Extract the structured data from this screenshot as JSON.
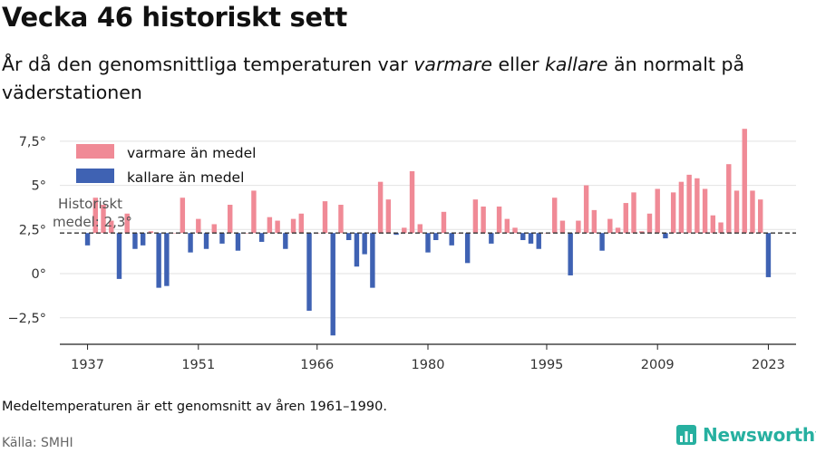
{
  "title": "Vecka 46 historiskt sett",
  "subtitle": {
    "part1": "År då den genomsnittliga temperaturen var ",
    "warm_word": "varmare",
    "part2": " eller ",
    "cold_word": "kallare",
    "part3": " än normalt på väderstationen"
  },
  "note": "Medeltemperaturen är ett genomsnitt av åren 1961–1990.",
  "source": "Källa: SMHI",
  "logo_text": "Newsworthy",
  "colors": {
    "warm": "#f08a96",
    "cold": "#3f62b3",
    "grid": "#e2e2e2",
    "baseline": "#333333",
    "accent": "#27b0a0"
  },
  "chart_data": {
    "type": "bar",
    "baseline": 2.3,
    "baseline_annotation": {
      "line1": "Historiskt",
      "line2": "medel: 2,3°"
    },
    "legend": [
      {
        "label": "varmare än medel",
        "color": "#f08a96"
      },
      {
        "label": "kallare än medel",
        "color": "#3f62b3"
      }
    ],
    "y_ticks": [
      {
        "value": -2.5,
        "label": "−2,5°"
      },
      {
        "value": 0,
        "label": "0°"
      },
      {
        "value": 2.5,
        "label": "2,5°"
      },
      {
        "value": 5,
        "label": "5°"
      },
      {
        "value": 7.5,
        "label": "7,5°"
      }
    ],
    "ylim": [
      -4.0,
      7.8
    ],
    "x_ticks": [
      "1937",
      "1951",
      "1966",
      "1980",
      "1995",
      "2009",
      "2023"
    ],
    "xlim": [
      1933.5,
      2026.5
    ],
    "years": [
      1937,
      1938,
      1939,
      1940,
      1941,
      1942,
      1943,
      1944,
      1945,
      1946,
      1947,
      1948,
      1949,
      1950,
      1951,
      1952,
      1953,
      1954,
      1955,
      1956,
      1957,
      1958,
      1959,
      1960,
      1961,
      1962,
      1963,
      1964,
      1965,
      1966,
      1967,
      1968,
      1969,
      1970,
      1971,
      1972,
      1973,
      1974,
      1975,
      1976,
      1977,
      1978,
      1979,
      1980,
      1981,
      1982,
      1983,
      1984,
      1985,
      1986,
      1987,
      1988,
      1989,
      1990,
      1991,
      1992,
      1993,
      1994,
      1995,
      1996,
      1997,
      1998,
      1999,
      2000,
      2001,
      2002,
      2003,
      2004,
      2005,
      2006,
      2007,
      2008,
      2009,
      2010,
      2011,
      2012,
      2013,
      2014,
      2015,
      2016,
      2017,
      2018,
      2019,
      2020,
      2021,
      2022,
      2023
    ],
    "values": [
      1.6,
      4.3,
      3.9,
      3.0,
      -0.3,
      3.4,
      1.4,
      1.6,
      2.4,
      -0.8,
      -0.7,
      2.3,
      4.3,
      1.2,
      3.1,
      1.4,
      2.8,
      1.7,
      3.9,
      1.3,
      2.3,
      4.7,
      1.8,
      3.2,
      3.0,
      1.4,
      3.1,
      3.4,
      -2.1,
      2.3,
      4.1,
      -3.5,
      3.9,
      1.9,
      0.4,
      1.1,
      -0.8,
      5.2,
      4.2,
      2.2,
      2.6,
      5.8,
      2.8,
      1.2,
      1.9,
      3.5,
      1.6,
      2.3,
      0.6,
      4.2,
      3.8,
      1.7,
      3.8,
      3.1,
      2.6,
      1.9,
      1.7,
      1.4,
      2.3,
      4.3,
      3.0,
      -0.1,
      3.0,
      5.0,
      3.6,
      1.3,
      3.1,
      2.6,
      4.0,
      4.6,
      2.4,
      3.4,
      4.8,
      2.0,
      4.6,
      5.2,
      5.6,
      5.4,
      4.8,
      3.3,
      2.9,
      6.2,
      4.7,
      8.2,
      4.7,
      4.2,
      -0.2
    ]
  }
}
